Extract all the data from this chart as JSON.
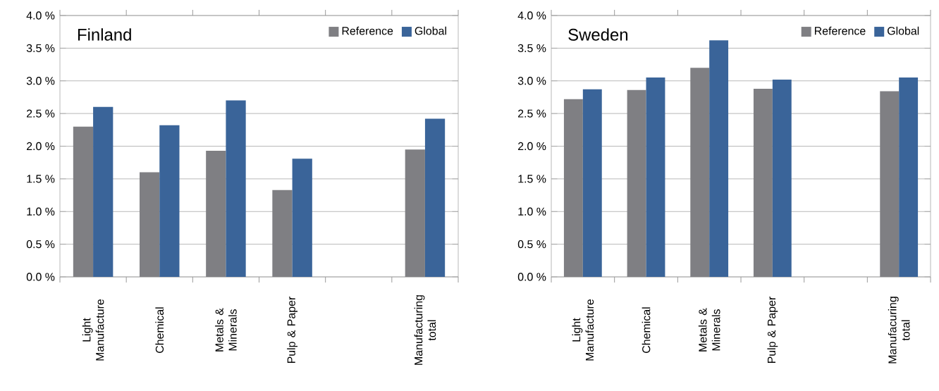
{
  "chart_data": [
    {
      "type": "bar",
      "title": "Finland",
      "categories": [
        "Light Manufacture",
        "Chemical",
        "Metals & Minerals",
        "Pulp & Paper",
        null,
        "Manufacturing total"
      ],
      "series": [
        {
          "name": "Reference",
          "color": "#7f7f83",
          "values": [
            2.3,
            1.6,
            1.93,
            1.33,
            null,
            1.95
          ]
        },
        {
          "name": "Global",
          "color": "#3a6499",
          "values": [
            2.6,
            2.32,
            2.7,
            1.81,
            null,
            2.42
          ]
        }
      ],
      "ylim": [
        0,
        4
      ],
      "yticks": [
        {
          "value": 0,
          "label": "0.0 %"
        },
        {
          "value": 0.5,
          "label": "0.5 %"
        },
        {
          "value": 1,
          "label": "1.0 %"
        },
        {
          "value": 1.5,
          "label": "1.5 %"
        },
        {
          "value": 2,
          "label": "2.0 %"
        },
        {
          "value": 2.5,
          "label": "2.5 %"
        },
        {
          "value": 3,
          "label": "3.0 %"
        },
        {
          "value": 3.5,
          "label": "3.5 %"
        },
        {
          "value": 4,
          "label": "4.0 %"
        }
      ],
      "grid": "y",
      "legend": "top right"
    },
    {
      "type": "bar",
      "title": "Sweden",
      "categories": [
        "Light Manufacture",
        "Chemical",
        "Metals & Minerals",
        "Pulp & Paper",
        null,
        "Manufacuring total"
      ],
      "series": [
        {
          "name": "Reference",
          "color": "#7f7f83",
          "values": [
            2.72,
            2.86,
            3.2,
            2.88,
            null,
            2.84
          ]
        },
        {
          "name": "Global",
          "color": "#3a6499",
          "values": [
            2.87,
            3.05,
            3.62,
            3.02,
            null,
            3.05
          ]
        }
      ],
      "ylim": [
        0,
        4
      ],
      "yticks": [
        {
          "value": 0,
          "label": "0.0 %"
        },
        {
          "value": 0.5,
          "label": "0.5 %"
        },
        {
          "value": 1,
          "label": "1.0 %"
        },
        {
          "value": 1.5,
          "label": "1.5 %"
        },
        {
          "value": 2,
          "label": "2.0 %"
        },
        {
          "value": 2.5,
          "label": "2.5 %"
        },
        {
          "value": 3,
          "label": "3.0 %"
        },
        {
          "value": 3.5,
          "label": "3.5 %"
        },
        {
          "value": 4,
          "label": "4.0 %"
        }
      ],
      "grid": "y",
      "legend": "top right"
    }
  ]
}
